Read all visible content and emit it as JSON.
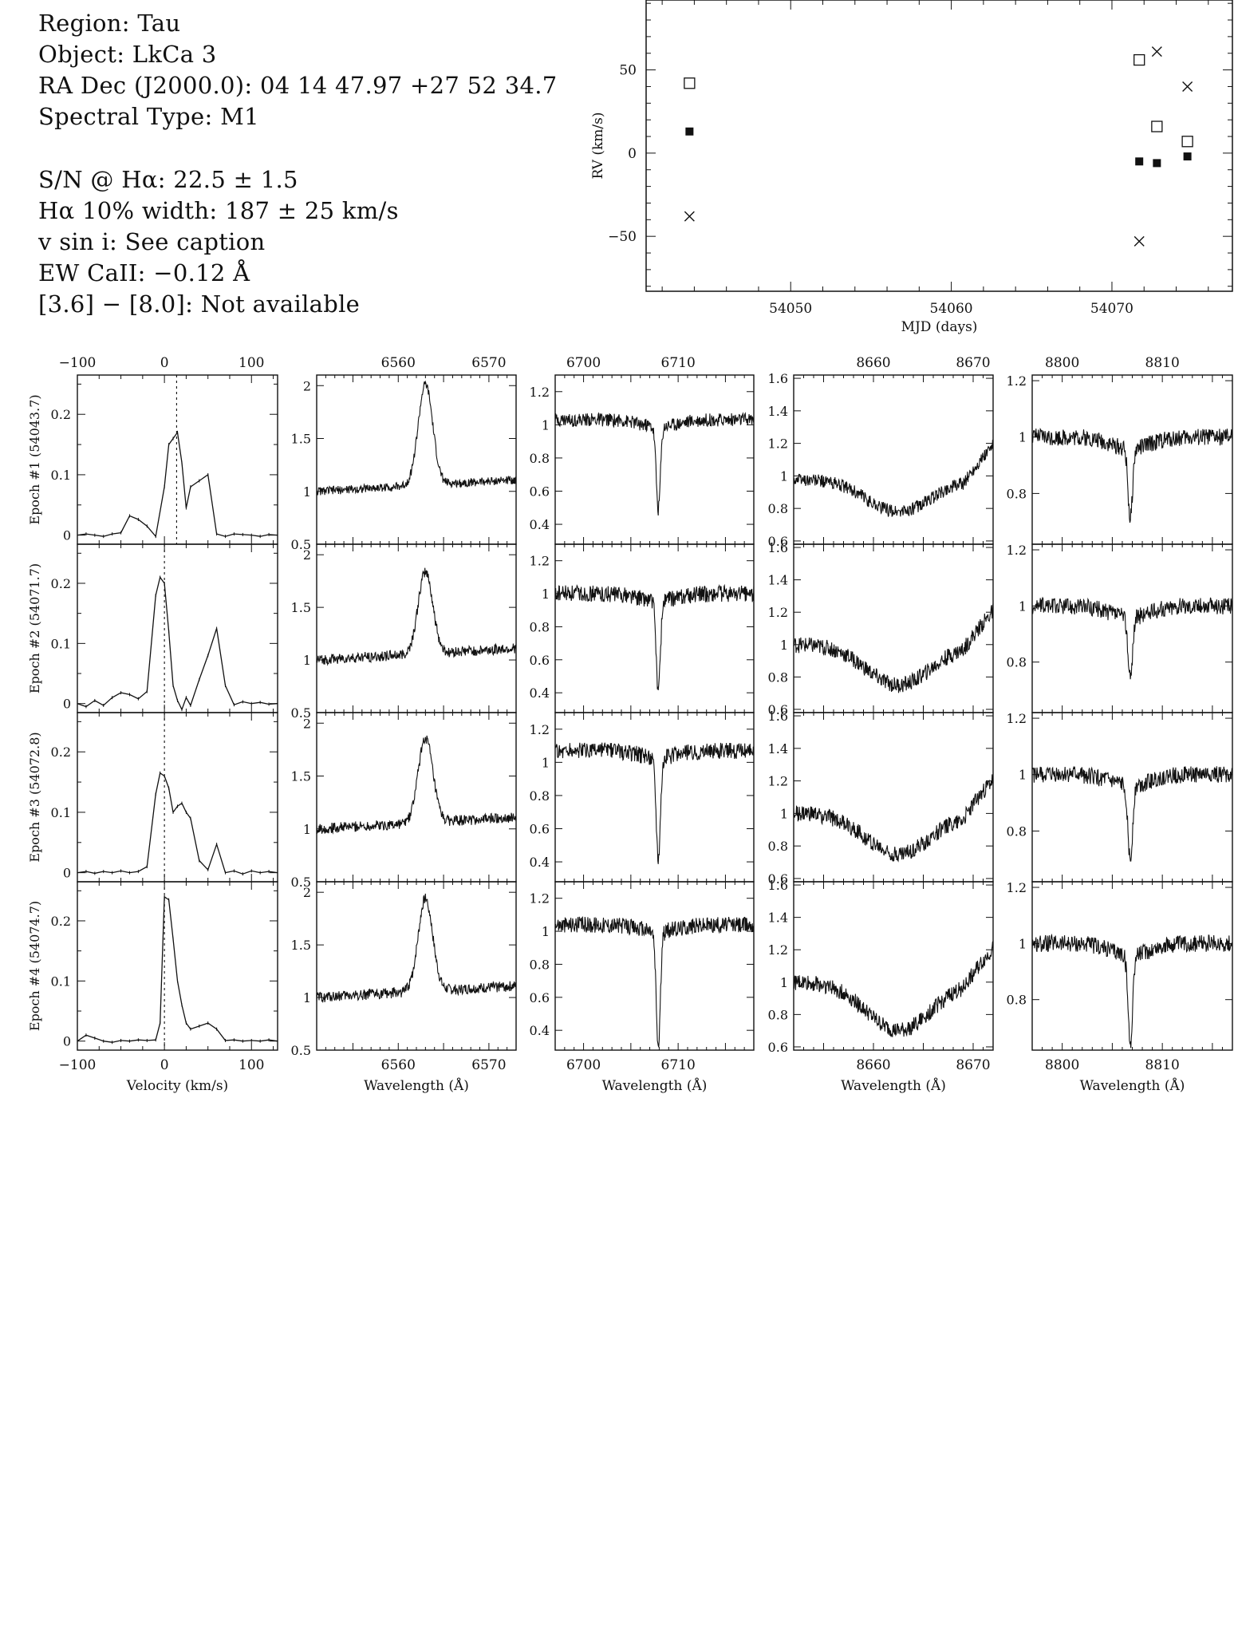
{
  "info": {
    "region": "Region: Tau",
    "object": "Object: LkCa 3",
    "radec": "RA Dec (J2000.0): 04 14 47.97 +27 52 34.7",
    "sptype": "Spectral Type: M1",
    "sn": "S/N @ Hα: 22.5 ± 1.5",
    "ha_width": "Hα 10% width: 187 ± 25 km/s",
    "vsini": "v sin i: See caption",
    "ew_ca": "EW CaII: −0.12 Å",
    "irac": "[3.6] − [8.0]: Not available"
  },
  "chart_data": [
    {
      "type": "scatter",
      "xlabel": "MJD (days)",
      "ylabel": "RV (km/s)",
      "xlim": [
        54041,
        54077.5
      ],
      "ylim": [
        -83,
        92
      ],
      "xticks": [
        54050,
        54060,
        54070
      ],
      "yticks": [
        -50,
        0,
        50
      ],
      "series": [
        {
          "marker": "filled-square",
          "x": [
            54043.7,
            54071.7,
            54072.8,
            54074.7
          ],
          "y": [
            13,
            -5,
            -6,
            -2
          ]
        },
        {
          "marker": "open-square",
          "x": [
            54043.7,
            54071.7,
            54072.8,
            54074.7
          ],
          "y": [
            42,
            56,
            16,
            7
          ]
        },
        {
          "marker": "cross",
          "x": [
            54043.7,
            54071.7,
            54072.8,
            54074.7
          ],
          "y": [
            -38,
            -53,
            61,
            40
          ]
        }
      ]
    },
    {
      "type": "line",
      "panel": "cross-correlation",
      "xlabel": "Velocity (km/s)",
      "xlim": [
        -100,
        130
      ],
      "ylim": [
        -0.015,
        0.265
      ],
      "xticks": [
        -100,
        0,
        100
      ],
      "yticks": [
        0,
        0.1,
        0.2
      ],
      "epochs": [
        {
          "label": "Epoch #1 (54043.7)",
          "marker_x": 14,
          "x": [
            -100,
            -90,
            -80,
            -70,
            -60,
            -50,
            -40,
            -30,
            -20,
            -10,
            0,
            5,
            10,
            15,
            20,
            25,
            30,
            40,
            50,
            60,
            70,
            80,
            90,
            100,
            110,
            120,
            130
          ],
          "y": [
            0,
            0.002,
            0,
            -0.002,
            0.002,
            0.004,
            0.032,
            0.026,
            0.015,
            -0.002,
            0.08,
            0.15,
            0.16,
            0.17,
            0.12,
            0.045,
            0.08,
            0.09,
            0.1,
            0.002,
            -0.002,
            0.002,
            0.001,
            0,
            -0.002,
            0.001,
            0
          ]
        },
        {
          "label": "Epoch #2 (54071.7)",
          "marker_x": 0,
          "x": [
            -100,
            -90,
            -80,
            -70,
            -60,
            -50,
            -40,
            -30,
            -20,
            -10,
            -5,
            0,
            5,
            10,
            15,
            20,
            25,
            30,
            40,
            50,
            60,
            70,
            80,
            90,
            100,
            110,
            120,
            130
          ],
          "y": [
            0,
            -0.005,
            0.005,
            -0.003,
            0.01,
            0.018,
            0.015,
            0.008,
            0.02,
            0.18,
            0.21,
            0.2,
            0.12,
            0.03,
            0.005,
            -0.01,
            0.01,
            -0.003,
            0.04,
            0.08,
            0.125,
            0.03,
            -0.002,
            0.003,
            0,
            0.002,
            -0.001,
            0
          ]
        },
        {
          "label": "Epoch #3 (54072.8)",
          "marker_x": 0,
          "x": [
            -100,
            -90,
            -80,
            -70,
            -60,
            -50,
            -40,
            -30,
            -20,
            -10,
            -5,
            0,
            5,
            10,
            15,
            20,
            25,
            30,
            40,
            50,
            60,
            70,
            80,
            90,
            100,
            110,
            120,
            130
          ],
          "y": [
            0,
            0.002,
            -0.001,
            0.002,
            0,
            0.003,
            0,
            0.002,
            0.01,
            0.13,
            0.165,
            0.16,
            0.14,
            0.1,
            0.11,
            0.115,
            0.1,
            0.09,
            0.02,
            0.005,
            0.047,
            0,
            0.003,
            -0.002,
            0.003,
            0,
            0.002,
            0
          ]
        },
        {
          "label": "Epoch #4 (54074.7)",
          "marker_x": 0,
          "x": [
            -100,
            -90,
            -80,
            -70,
            -60,
            -50,
            -40,
            -30,
            -20,
            -10,
            -5,
            0,
            5,
            10,
            15,
            20,
            25,
            30,
            40,
            50,
            60,
            70,
            80,
            90,
            100,
            110,
            120,
            130
          ],
          "y": [
            0,
            0.01,
            0.005,
            0,
            -0.002,
            0.001,
            0,
            0.002,
            0.001,
            0.002,
            0.03,
            0.24,
            0.235,
            0.17,
            0.1,
            0.06,
            0.03,
            0.02,
            0.025,
            0.03,
            0.02,
            0.001,
            0.002,
            0,
            0.001,
            0,
            0.002,
            0
          ]
        }
      ]
    },
    {
      "type": "line",
      "panel": "H-alpha",
      "xlabel": "Wavelength (Å)",
      "xlim": [
        6551,
        6573
      ],
      "ylim": [
        0.5,
        2.1
      ],
      "top_ticks": [
        6560,
        6570
      ],
      "bottom_ticks": [
        6560,
        6570
      ],
      "yticks": [
        [
          0.5,
          1,
          1.5,
          2
        ],
        [
          0.5,
          1,
          1.5,
          2
        ],
        [
          0.5,
          1,
          1.5,
          2
        ],
        [
          0.5,
          1,
          1.5,
          2
        ]
      ],
      "ylims": [
        [
          0.5,
          2.1
        ],
        [
          0.5,
          2.1
        ],
        [
          0.5,
          2.1
        ],
        [
          0.5,
          2.1
        ]
      ],
      "profile": "emission",
      "center": 6563,
      "epochs": [
        {
          "baseline": 1.0,
          "peak": 1.95,
          "noise": 0.04
        },
        {
          "baseline": 1.0,
          "peak": 1.78,
          "noise": 0.05
        },
        {
          "baseline": 1.0,
          "peak": 1.8,
          "noise": 0.05
        },
        {
          "baseline": 1.0,
          "peak": 1.88,
          "noise": 0.05
        }
      ]
    },
    {
      "type": "line",
      "panel": "Li I 6708",
      "xlabel": "Wavelength (Å)",
      "xlim": [
        6697,
        6718
      ],
      "top_ticks": [
        6700,
        6710
      ],
      "bottom_ticks": [
        6700,
        6710
      ],
      "yticks": [
        [
          0.4,
          0.6,
          0.8,
          1,
          1.2
        ],
        [
          0.4,
          0.6,
          0.8,
          1,
          1.2
        ],
        [
          0.4,
          0.6,
          0.8,
          1,
          1.2
        ],
        [
          0.4,
          0.6,
          0.8,
          1,
          1.2
        ]
      ],
      "ylims": [
        [
          0.28,
          1.3
        ],
        [
          0.28,
          1.3
        ],
        [
          0.28,
          1.3
        ],
        [
          0.28,
          1.3
        ]
      ],
      "profile": "absorption",
      "center": 6707.9,
      "epochs": [
        {
          "baseline": 1.03,
          "depth": 0.5,
          "noise": 0.04
        },
        {
          "baseline": 1.0,
          "depth": 0.55,
          "noise": 0.05
        },
        {
          "baseline": 1.07,
          "depth": 0.6,
          "noise": 0.05
        },
        {
          "baseline": 1.04,
          "depth": 0.7,
          "noise": 0.05
        }
      ]
    },
    {
      "type": "line",
      "panel": "Ca II 8662",
      "xlabel": "Wavelength (Å)",
      "xlim": [
        8652,
        8672
      ],
      "top_ticks": [
        8660,
        8670
      ],
      "bottom_ticks": [
        8660,
        8670
      ],
      "yticks": [
        [
          0.6,
          0.8,
          1,
          1.2,
          1.4,
          1.6
        ],
        [
          0.6,
          0.8,
          1,
          1.2,
          1.4,
          1.6
        ],
        [
          0.6,
          0.8,
          1,
          1.2,
          1.4,
          1.6
        ],
        [
          0.6,
          0.8,
          1,
          1.2,
          1.4,
          1.6
        ]
      ],
      "ylims": [
        [
          0.58,
          1.62
        ],
        [
          0.58,
          1.62
        ],
        [
          0.58,
          1.62
        ],
        [
          0.58,
          1.62
        ]
      ],
      "profile": "broad-absorption",
      "center": 8662.5,
      "epochs": [
        {
          "baseline": 0.98,
          "depth": 0.2,
          "noise": 0.04
        },
        {
          "baseline": 1.0,
          "depth": 0.25,
          "noise": 0.05
        },
        {
          "baseline": 1.0,
          "depth": 0.25,
          "noise": 0.05
        },
        {
          "baseline": 1.0,
          "depth": 0.3,
          "noise": 0.05
        }
      ]
    },
    {
      "type": "line",
      "panel": "8807",
      "xlabel": "Wavelength (Å)",
      "xlim": [
        8797,
        8817
      ],
      "top_ticks": [
        8800,
        8810
      ],
      "bottom_ticks": [
        8800,
        8810
      ],
      "yticks": [
        [
          0.8,
          1,
          1.2
        ],
        [
          0.8,
          1,
          1.2
        ],
        [
          0.8,
          1,
          1.2
        ],
        [
          0.8,
          1,
          1.2
        ]
      ],
      "ylims": [
        [
          0.62,
          1.22
        ],
        [
          0.62,
          1.22
        ],
        [
          0.62,
          1.22
        ],
        [
          0.62,
          1.22
        ]
      ],
      "profile": "absorption",
      "center": 8806.8,
      "epochs": [
        {
          "baseline": 1.0,
          "depth": 0.25,
          "noise": 0.03
        },
        {
          "baseline": 1.0,
          "depth": 0.22,
          "noise": 0.03
        },
        {
          "baseline": 1.0,
          "depth": 0.27,
          "noise": 0.03
        },
        {
          "baseline": 1.0,
          "depth": 0.32,
          "noise": 0.03
        }
      ]
    }
  ]
}
